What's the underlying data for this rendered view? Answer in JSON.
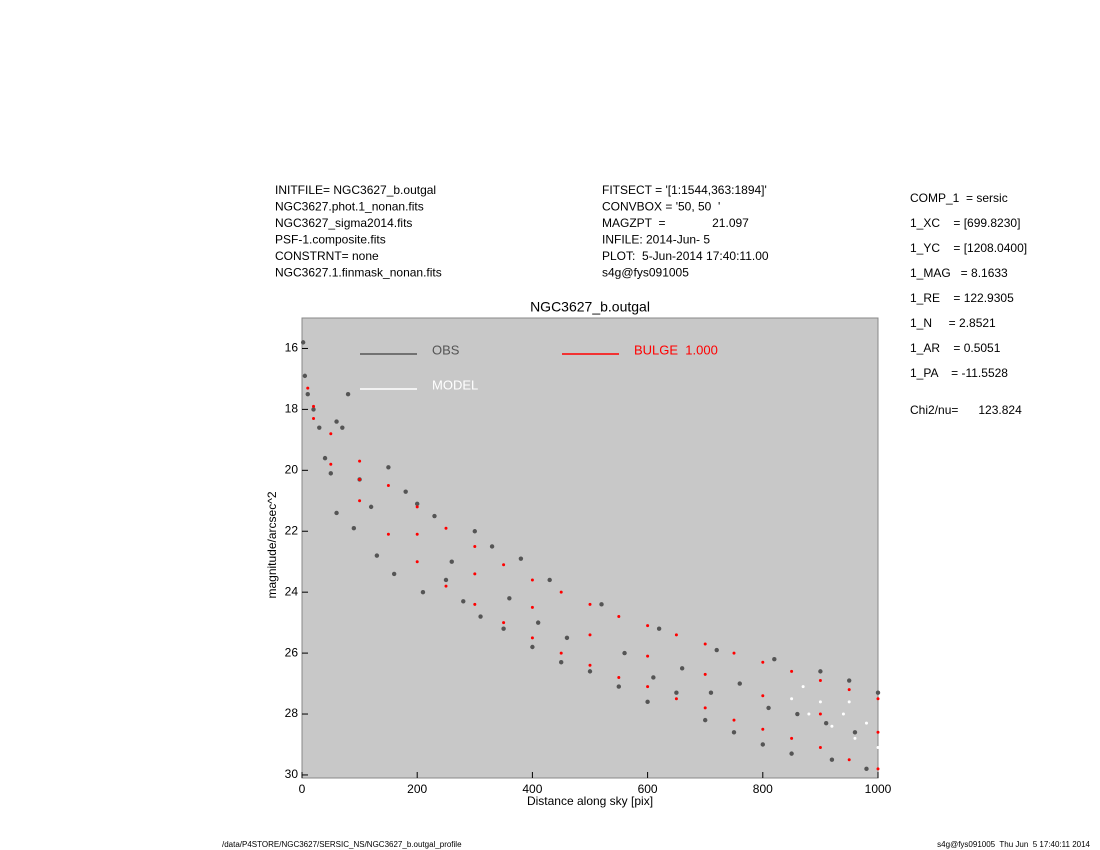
{
  "chart_data": {
    "type": "scatter",
    "title": "NGC3627_b.outgal",
    "xlabel": "Distance along sky [pix]",
    "ylabel": "magnitude/arcsec^2",
    "xlim": [
      0,
      1000
    ],
    "ylim": [
      30.1,
      15
    ],
    "xticks": [
      0,
      200,
      400,
      600,
      800,
      1000
    ],
    "yticks": [
      16,
      18,
      20,
      22,
      24,
      26,
      28,
      30
    ],
    "background": "#c8c8c8",
    "info_left": [
      "INITFILE= NGC3627_b.outgal",
      "NGC3627.phot.1_nonan.fits",
      "NGC3627_sigma2014.fits",
      "PSF-1.composite.fits",
      "CONSTRNT= none",
      "NGC3627.1.finmask_nonan.fits"
    ],
    "info_middle": [
      "FITSECT = '[1:1544,363:1894]'",
      "CONVBOX = '50, 50  '",
      "MAGZPT  =              21.097",
      "INFILE: 2014-Jun- 5",
      "PLOT:  5-Jun-2014 17:40:11.00",
      "s4g@fys091005"
    ],
    "info_right": [
      "COMP_1  = sersic",
      "1_XC    = [699.8230]",
      "1_YC    = [1208.0400]",
      "1_MAG   = 8.1633",
      "1_RE    = 122.9305",
      "1_N     = 2.8521",
      "1_AR    = 0.5051",
      "1_PA    = -11.5528",
      "Chi2/nu=      123.824"
    ],
    "footer_left": "/data/P4STORE/NGC3627/SERSIC_NS/NGC3627_b.outgal_profile",
    "footer_right": "s4g@fys091005  Thu Jun  5 17:40:11 2014",
    "series": [
      {
        "name": "OBS",
        "color": "#555555",
        "x": [
          2,
          5,
          10,
          20,
          30,
          40,
          50,
          60,
          70,
          80,
          100,
          120,
          150,
          180,
          200,
          230,
          250,
          280,
          300,
          330,
          350,
          380,
          400,
          430,
          450,
          500,
          520,
          550,
          600,
          620,
          650,
          700,
          720,
          750,
          800,
          820,
          850,
          900,
          920,
          950,
          980,
          1000,
          60,
          90,
          130,
          160,
          210,
          260,
          310,
          360,
          410,
          460,
          560,
          610,
          660,
          710,
          760,
          810,
          860,
          910,
          960
        ],
        "values": [
          15.8,
          16.9,
          17.5,
          18.0,
          18.6,
          19.6,
          20.1,
          18.4,
          18.6,
          17.5,
          20.3,
          21.2,
          19.9,
          20.7,
          21.1,
          21.5,
          23.6,
          24.3,
          22.0,
          22.5,
          25.2,
          22.9,
          25.8,
          23.6,
          26.3,
          26.6,
          24.4,
          27.1,
          27.6,
          25.2,
          27.3,
          28.2,
          25.9,
          28.6,
          29.0,
          26.2,
          29.3,
          26.6,
          29.5,
          26.9,
          29.8,
          27.3,
          21.4,
          21.9,
          22.8,
          23.4,
          24.0,
          23.0,
          24.8,
          24.2,
          25.0,
          25.5,
          26.0,
          26.8,
          26.5,
          27.3,
          27.0,
          27.8,
          28.0,
          28.3,
          28.6
        ]
      },
      {
        "name": "MODEL",
        "color": "#ffffff",
        "x": [
          850,
          880,
          900,
          920,
          940,
          960,
          980,
          1000,
          870,
          950
        ],
        "values": [
          27.5,
          28.0,
          27.6,
          28.4,
          28.0,
          28.8,
          28.3,
          29.1,
          27.1,
          27.6
        ]
      },
      {
        "name": "BULGE  1.000",
        "color": "#ff0000",
        "x": [
          10,
          20,
          50,
          100,
          150,
          200,
          250,
          300,
          350,
          400,
          450,
          500,
          550,
          600,
          650,
          700,
          750,
          800,
          850,
          900,
          950,
          1000,
          20,
          50,
          100,
          150,
          200,
          250,
          300,
          350,
          400,
          450,
          500,
          550,
          600,
          650,
          700,
          750,
          800,
          850,
          900,
          950,
          1000,
          100,
          200,
          300,
          400,
          500,
          600,
          700,
          800,
          900,
          1000
        ],
        "values": [
          17.3,
          17.9,
          18.8,
          19.7,
          20.5,
          21.2,
          21.9,
          22.5,
          23.1,
          23.6,
          24.0,
          24.4,
          24.8,
          25.1,
          25.4,
          25.7,
          26.0,
          26.3,
          26.6,
          26.9,
          27.2,
          27.5,
          18.3,
          19.8,
          21.0,
          22.1,
          23.0,
          23.8,
          24.4,
          25.0,
          25.5,
          26.0,
          26.4,
          26.8,
          27.1,
          27.5,
          27.8,
          28.2,
          28.5,
          28.8,
          29.1,
          29.5,
          29.8,
          20.3,
          22.1,
          23.4,
          24.5,
          25.4,
          26.1,
          26.7,
          27.4,
          28.0,
          28.6
        ]
      }
    ]
  }
}
